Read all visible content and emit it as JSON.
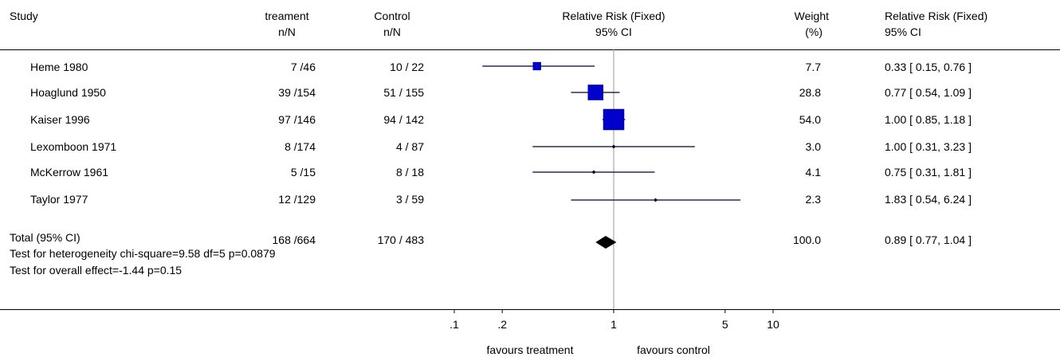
{
  "header": {
    "study": "Study",
    "treatment_line1": "treament",
    "treatment_line2": "n/N",
    "control_line1": "Control",
    "control_line2": "n/N",
    "rr_line1": "Relative Risk (Fixed)",
    "rr_line2": "95% CI",
    "weight_line1": "Weight",
    "weight_line2": "(%)",
    "rrci_line1": "Relative Risk (Fixed)",
    "rrci_line2": "95% CI"
  },
  "rows": [
    {
      "study": "Heme  1980",
      "treatment": "7 /46",
      "control": "10 / 22",
      "weight": "7.7",
      "ci_text": "0.33 [ 0.15, 0.76 ]"
    },
    {
      "study": "Hoaglund 1950",
      "treatment": "39 /154",
      "control": "51 / 155",
      "weight": "28.8",
      "ci_text": "0.77 [ 0.54, 1.09 ]"
    },
    {
      "study": "Kaiser 1996",
      "treatment": "97 /146",
      "control": "94 / 142",
      "weight": "54.0",
      "ci_text": "1.00 [ 0.85, 1.18 ]"
    },
    {
      "study": "Lexomboon 1971",
      "treatment": "8 /174",
      "control": "4 / 87",
      "weight": "3.0",
      "ci_text": "1.00 [ 0.31, 3.23 ]"
    },
    {
      "study": "McKerrow  1961",
      "treatment": "5 /15",
      "control": "8 / 18",
      "weight": "4.1",
      "ci_text": "0.75 [ 0.31, 1.81 ]"
    },
    {
      "study": "Taylor 1977",
      "treatment": "12 /129",
      "control": "3 / 59",
      "weight": "2.3",
      "ci_text": "1.83 [ 0.54, 6.24 ]"
    }
  ],
  "total": {
    "label": "Total (95% CI)",
    "treatment": "168 /664",
    "control": "170 / 483",
    "weight": "100.0",
    "ci_text": "0.89 [ 0.77, 1.04 ]"
  },
  "tests": {
    "heterogeneity": "Test for heterogeneity chi-square=9.58 df=5 p=0.0879",
    "overall": "Test for overall effect=-1.44 p=0.15"
  },
  "axis_labels": {
    "favours_left": "favours treatment",
    "favours_right": "favours control"
  },
  "chart_data": {
    "type": "forest",
    "scale": "log",
    "xlim": [
      0.1,
      10
    ],
    "null_line": 1,
    "ticks": [
      {
        "value": 0.1,
        "label": ".1"
      },
      {
        "value": 0.2,
        "label": ".2"
      },
      {
        "value": 1,
        "label": "1"
      },
      {
        "value": 5,
        "label": "5"
      },
      {
        "value": 10,
        "label": "10"
      }
    ],
    "colors": {
      "study_marker": "#0000cc",
      "summary": "#000000",
      "ci_line": "#000033",
      "null_line": "#999999"
    },
    "studies": [
      {
        "name": "Heme  1980",
        "rr": 0.33,
        "lower": 0.15,
        "upper": 0.76,
        "weight": 7.7
      },
      {
        "name": "Hoaglund 1950",
        "rr": 0.77,
        "lower": 0.54,
        "upper": 1.09,
        "weight": 28.8
      },
      {
        "name": "Kaiser 1996",
        "rr": 1.0,
        "lower": 0.85,
        "upper": 1.18,
        "weight": 54.0
      },
      {
        "name": "Lexomboon 1971",
        "rr": 1.0,
        "lower": 0.31,
        "upper": 3.23,
        "weight": 3.0
      },
      {
        "name": "McKerrow  1961",
        "rr": 0.75,
        "lower": 0.31,
        "upper": 1.81,
        "weight": 4.1
      },
      {
        "name": "Taylor 1977",
        "rr": 1.83,
        "lower": 0.54,
        "upper": 6.24,
        "weight": 2.3
      }
    ],
    "summary": {
      "rr": 0.89,
      "lower": 0.77,
      "upper": 1.04
    }
  }
}
